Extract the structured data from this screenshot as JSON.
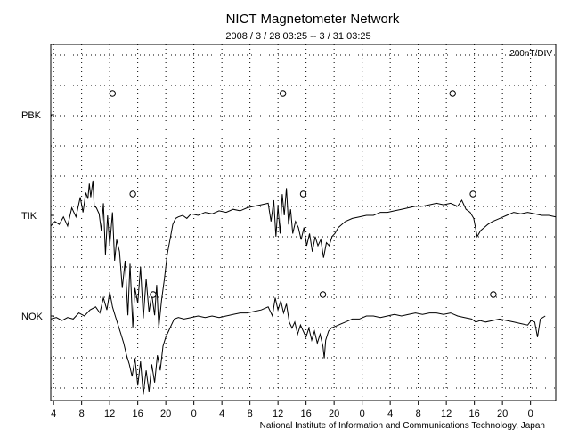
{
  "chart_data": {
    "type": "line",
    "title": "NICT Magnetometer Network",
    "subtitle": "2008 / 3 / 28   03:25 --  3 / 31   03:25",
    "scale_label": "200nT/DIV",
    "credit": "National Institute of Information and Communications Technology, Japan",
    "x_tick_labels": [
      "4",
      "8",
      "12",
      "16",
      "20",
      "0",
      "4",
      "8",
      "12",
      "16",
      "20",
      "0",
      "4",
      "8",
      "12",
      "16",
      "20",
      "0"
    ],
    "xlim_hours": [
      0,
      72
    ],
    "grid": true,
    "stations": [
      {
        "name": "PBK",
        "markers_hours": [
          8.8,
          33.1,
          57.3
        ],
        "trace": []
      },
      {
        "name": "TIK",
        "markers_hours": [
          11.7,
          36.0,
          60.2
        ],
        "trace": [
          [
            0.0,
            -0.35
          ],
          [
            0.6,
            -0.2
          ],
          [
            1.2,
            -0.3
          ],
          [
            1.8,
            -0.05
          ],
          [
            2.4,
            -0.35
          ],
          [
            3.0,
            0.25
          ],
          [
            3.6,
            -0.05
          ],
          [
            4.2,
            0.6
          ],
          [
            4.6,
            0.1
          ],
          [
            5.0,
            0.75
          ],
          [
            5.3,
            0.55
          ],
          [
            5.5,
            1.05
          ],
          [
            5.7,
            0.6
          ],
          [
            6.0,
            1.15
          ],
          [
            6.2,
            0.3
          ],
          [
            6.5,
            0.25
          ],
          [
            6.9,
            0.05
          ],
          [
            7.2,
            -0.5
          ],
          [
            7.5,
            0.4
          ],
          [
            7.8,
            -1.3
          ],
          [
            8.1,
            0.0
          ],
          [
            8.4,
            -1.0
          ],
          [
            8.8,
            0.1
          ],
          [
            9.1,
            -1.5
          ],
          [
            9.4,
            -0.8
          ],
          [
            9.8,
            -1.2
          ],
          [
            10.2,
            -2.4
          ],
          [
            10.6,
            -1.5
          ],
          [
            11.0,
            -3.3
          ],
          [
            11.3,
            -1.6
          ],
          [
            11.7,
            -3.7
          ],
          [
            12.0,
            -2.4
          ],
          [
            12.4,
            -2.9
          ],
          [
            12.8,
            -1.7
          ],
          [
            13.2,
            -3.4
          ],
          [
            13.6,
            -2.1
          ],
          [
            14.0,
            -3.2
          ],
          [
            14.4,
            -2.6
          ],
          [
            14.8,
            -3.3
          ],
          [
            15.1,
            -2.3
          ],
          [
            15.4,
            -3.7
          ],
          [
            15.8,
            -2.8
          ],
          [
            16.2,
            -2.1
          ],
          [
            16.6,
            -1.3
          ],
          [
            17.0,
            -0.8
          ],
          [
            17.4,
            -0.3
          ],
          [
            17.8,
            -0.1
          ],
          [
            18.2,
            -0.05
          ],
          [
            18.8,
            0.0
          ],
          [
            19.4,
            -0.1
          ],
          [
            20.0,
            0.05
          ],
          [
            21.0,
            -0.0
          ],
          [
            22.0,
            0.1
          ],
          [
            23.0,
            0.05
          ],
          [
            24.0,
            0.15
          ],
          [
            25.0,
            0.1
          ],
          [
            26.0,
            0.2
          ],
          [
            27.0,
            0.15
          ],
          [
            28.0,
            0.25
          ],
          [
            29.0,
            0.3
          ],
          [
            30.0,
            0.35
          ],
          [
            31.0,
            0.4
          ],
          [
            31.4,
            -0.2
          ],
          [
            31.8,
            0.5
          ],
          [
            32.1,
            -0.7
          ],
          [
            32.4,
            0.3
          ],
          [
            32.7,
            -0.6
          ],
          [
            33.0,
            0.7
          ],
          [
            33.3,
            0.0
          ],
          [
            33.6,
            0.9
          ],
          [
            33.9,
            -0.3
          ],
          [
            34.2,
            0.2
          ],
          [
            34.5,
            -0.6
          ],
          [
            34.9,
            -0.2
          ],
          [
            35.3,
            -0.4
          ],
          [
            35.7,
            -0.8
          ],
          [
            36.1,
            -0.4
          ],
          [
            36.5,
            -1.0
          ],
          [
            36.9,
            -0.6
          ],
          [
            37.3,
            -1.2
          ],
          [
            37.7,
            -0.7
          ],
          [
            38.1,
            -1.0
          ],
          [
            38.5,
            -0.8
          ],
          [
            38.9,
            -1.4
          ],
          [
            39.3,
            -0.9
          ],
          [
            39.7,
            -1.0
          ],
          [
            40.1,
            -0.7
          ],
          [
            40.5,
            -0.6
          ],
          [
            41.0,
            -0.4
          ],
          [
            42.0,
            -0.2
          ],
          [
            43.0,
            -0.1
          ],
          [
            44.0,
            -0.05
          ],
          [
            45.0,
            0.0
          ],
          [
            46.0,
            0.0
          ],
          [
            47.0,
            0.1
          ],
          [
            48.0,
            0.1
          ],
          [
            49.0,
            0.15
          ],
          [
            50.0,
            0.2
          ],
          [
            51.0,
            0.25
          ],
          [
            52.0,
            0.3
          ],
          [
            53.0,
            0.3
          ],
          [
            54.0,
            0.35
          ],
          [
            55.0,
            0.4
          ],
          [
            56.0,
            0.35
          ],
          [
            57.0,
            0.4
          ],
          [
            58.0,
            0.3
          ],
          [
            58.6,
            0.5
          ],
          [
            59.2,
            0.2
          ],
          [
            59.8,
            0.1
          ],
          [
            60.3,
            -0.1
          ],
          [
            60.8,
            -0.7
          ],
          [
            61.3,
            -0.5
          ],
          [
            61.8,
            -0.4
          ],
          [
            62.3,
            -0.3
          ],
          [
            63.0,
            -0.2
          ],
          [
            64.0,
            -0.1
          ],
          [
            65.0,
            0.0
          ],
          [
            66.0,
            0.1
          ],
          [
            67.0,
            0.05
          ],
          [
            68.0,
            0.1
          ],
          [
            69.0,
            0.05
          ],
          [
            70.0,
            0.0
          ],
          [
            71.0,
            0.0
          ],
          [
            72.0,
            -0.05
          ]
        ]
      },
      {
        "name": "NOK",
        "markers_hours": [
          14.6,
          38.8,
          63.1
        ],
        "trace": [
          [
            0.0,
            -0.1
          ],
          [
            0.8,
            -0.05
          ],
          [
            1.6,
            -0.15
          ],
          [
            2.4,
            -0.05
          ],
          [
            3.2,
            -0.1
          ],
          [
            4.0,
            0.1
          ],
          [
            4.8,
            0.0
          ],
          [
            5.6,
            0.2
          ],
          [
            6.4,
            0.3
          ],
          [
            7.0,
            0.1
          ],
          [
            7.5,
            0.6
          ],
          [
            8.0,
            0.2
          ],
          [
            8.4,
            0.8
          ],
          [
            8.8,
            0.3
          ],
          [
            9.2,
            0.0
          ],
          [
            9.6,
            -0.3
          ],
          [
            10.0,
            -0.6
          ],
          [
            10.4,
            -0.9
          ],
          [
            10.8,
            -1.3
          ],
          [
            11.2,
            -1.6
          ],
          [
            11.6,
            -2.0
          ],
          [
            12.0,
            -1.4
          ],
          [
            12.4,
            -2.3
          ],
          [
            12.8,
            -1.5
          ],
          [
            13.2,
            -2.6
          ],
          [
            13.6,
            -1.8
          ],
          [
            14.0,
            -2.5
          ],
          [
            14.4,
            -1.6
          ],
          [
            14.8,
            -2.2
          ],
          [
            15.2,
            -1.3
          ],
          [
            15.6,
            -1.8
          ],
          [
            16.0,
            -1.0
          ],
          [
            16.4,
            -0.7
          ],
          [
            16.8,
            -0.5
          ],
          [
            17.2,
            -0.3
          ],
          [
            17.6,
            -0.1
          ],
          [
            18.2,
            -0.05
          ],
          [
            19.0,
            -0.1
          ],
          [
            20.0,
            -0.05
          ],
          [
            21.0,
            0.0
          ],
          [
            22.0,
            -0.05
          ],
          [
            23.0,
            0.0
          ],
          [
            24.0,
            -0.05
          ],
          [
            25.0,
            0.0
          ],
          [
            26.0,
            0.05
          ],
          [
            27.0,
            0.1
          ],
          [
            28.0,
            0.1
          ],
          [
            29.0,
            0.15
          ],
          [
            30.0,
            0.2
          ],
          [
            31.0,
            0.3
          ],
          [
            31.6,
            0.0
          ],
          [
            32.0,
            0.6
          ],
          [
            32.4,
            0.2
          ],
          [
            32.8,
            0.5
          ],
          [
            33.2,
            0.1
          ],
          [
            33.6,
            0.4
          ],
          [
            34.0,
            -0.2
          ],
          [
            34.4,
            -0.4
          ],
          [
            34.8,
            -0.2
          ],
          [
            35.2,
            -0.6
          ],
          [
            35.6,
            -0.3
          ],
          [
            36.0,
            -0.5
          ],
          [
            36.4,
            -0.7
          ],
          [
            36.8,
            -0.4
          ],
          [
            37.2,
            -0.8
          ],
          [
            37.6,
            -0.5
          ],
          [
            38.0,
            -0.9
          ],
          [
            38.4,
            -0.6
          ],
          [
            38.8,
            -1.0
          ],
          [
            39.0,
            -1.4
          ],
          [
            39.2,
            -0.8
          ],
          [
            39.6,
            -0.5
          ],
          [
            40.0,
            -0.4
          ],
          [
            41.0,
            -0.3
          ],
          [
            42.0,
            -0.2
          ],
          [
            43.0,
            -0.1
          ],
          [
            44.0,
            -0.1
          ],
          [
            45.0,
            0.0
          ],
          [
            46.0,
            0.0
          ],
          [
            47.0,
            -0.05
          ],
          [
            48.0,
            0.0
          ],
          [
            49.0,
            0.05
          ],
          [
            50.0,
            0.0
          ],
          [
            51.0,
            0.05
          ],
          [
            52.0,
            0.1
          ],
          [
            53.0,
            0.05
          ],
          [
            54.0,
            0.1
          ],
          [
            55.0,
            0.1
          ],
          [
            56.0,
            0.05
          ],
          [
            57.0,
            0.1
          ],
          [
            58.0,
            0.0
          ],
          [
            59.0,
            -0.05
          ],
          [
            60.0,
            -0.1
          ],
          [
            60.6,
            -0.2
          ],
          [
            61.2,
            -0.15
          ],
          [
            62.0,
            -0.2
          ],
          [
            63.0,
            -0.15
          ],
          [
            64.0,
            -0.1
          ],
          [
            65.0,
            -0.15
          ],
          [
            66.0,
            -0.2
          ],
          [
            67.0,
            -0.25
          ],
          [
            68.0,
            -0.3
          ],
          [
            68.5,
            -0.15
          ],
          [
            69.0,
            -0.2
          ],
          [
            69.4,
            -0.7
          ],
          [
            69.8,
            -0.1
          ],
          [
            70.5,
            0.0
          ]
        ]
      }
    ]
  }
}
